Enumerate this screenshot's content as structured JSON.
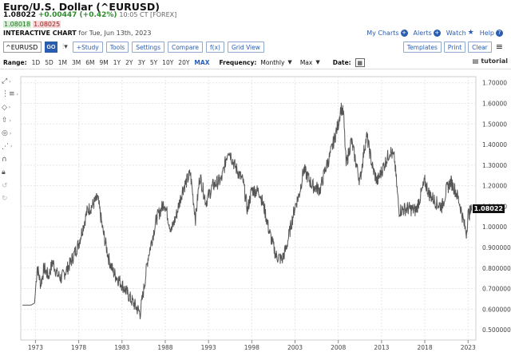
{
  "header": {
    "title": "Euro/U.S. Dollar (^EURUSD)",
    "last": "1.08022",
    "change": "+0.00447 (+0.42%)",
    "timestamp": "10:05 CT [FOREX]",
    "bid": "1.08018",
    "ask": "1.08025",
    "chart_label": "INTERACTIVE CHART",
    "chart_date": "for Tue, Jun 13th, 2023"
  },
  "links": {
    "my_charts": "My Charts",
    "alerts": "Alerts",
    "watch": "Watch",
    "help": "Help"
  },
  "toolbar": {
    "symbol_value": "^EURUSD",
    "go_label": "GO",
    "study_label": "+Study",
    "tools_label": "Tools",
    "settings_label": "Settings",
    "compare_label": "Compare",
    "fx_label": "f(x)",
    "gridview_label": "Grid View",
    "templates_label": "Templates",
    "print_label": "Print",
    "clear_label": "Clear"
  },
  "range": {
    "label": "Range:",
    "options": [
      "1D",
      "5D",
      "1M",
      "3M",
      "6M",
      "9M",
      "1Y",
      "2Y",
      "3Y",
      "5Y",
      "10Y",
      "20Y",
      "MAX"
    ],
    "active": "MAX",
    "frequency_label": "Frequency:",
    "frequency_value": "Monthly",
    "period_value": "Max",
    "date_label": "Date:"
  },
  "tutorial_label": "tutorial",
  "icons": [
    "crosshair-icon",
    "draw-line-icon",
    "shapes-icon",
    "arrow-up-icon",
    "target-icon",
    "pattern-icon",
    "magnet-icon",
    "lock-icon",
    "undo-icon",
    "redo-icon",
    "calendar-icon",
    "menu-icon",
    "tutorial-icon"
  ],
  "colors": {
    "accent": "#2a5db0",
    "price_line": "#555555",
    "up": "#2e8b2e",
    "last_box": "#111111"
  },
  "chart_data": {
    "type": "line",
    "title": "",
    "xlabel": "",
    "ylabel": "",
    "x_ticks": [
      "1973",
      "1978",
      "1983",
      "1988",
      "1993",
      "1998",
      "2003",
      "2008",
      "2013",
      "2018",
      "2023"
    ],
    "y_ticks": [
      "0.500000",
      "0.600000",
      "0.700000",
      "0.800000",
      "0.900000",
      "1.00000",
      "1.10000",
      "1.20000",
      "1.30000",
      "1.40000",
      "1.50000",
      "1.60000",
      "1.70000"
    ],
    "xlim": [
      1971.3,
      2023.9
    ],
    "ylim": [
      0.45,
      1.73
    ],
    "last_value": "1.08022",
    "series": [
      {
        "x": [
          1971.5,
          1972.5,
          1972.9,
          1973.2,
          1973.6,
          1974.0,
          1974.5,
          1975.0,
          1975.5,
          1976.0,
          1977.0,
          1978.0,
          1979.0,
          1979.5,
          1980.2,
          1980.8,
          1981.5,
          1982.0,
          1983.0,
          1984.0,
          1985.1,
          1985.6,
          1986.0,
          1987.0,
          1987.9,
          1988.7,
          1989.3,
          1990.0,
          1990.9,
          1991.5,
          1992.0,
          1992.7,
          1993.5,
          1994.5,
          1995.3,
          1996.0,
          1997.0,
          1997.5,
          1998.0,
          1998.9,
          1999.5,
          2000.0,
          2000.8,
          2001.5,
          2002.0,
          2002.5,
          2003.0,
          2003.5,
          2004.0,
          2005.0,
          2005.9,
          2006.5,
          2007.0,
          2007.5,
          2008.0,
          2008.3,
          2008.6,
          2008.9,
          2009.5,
          2010.0,
          2010.5,
          2011.0,
          2011.3,
          2012.0,
          2012.5,
          2013.5,
          2014.0,
          2014.5,
          2015.0,
          2016.0,
          2017.0,
          2018.0,
          2018.5,
          2019.5,
          2020.0,
          2020.5,
          2021.0,
          2021.5,
          2022.0,
          2022.5,
          2022.8,
          2023.0,
          2023.4
        ],
        "values": [
          0.62,
          0.62,
          0.63,
          0.81,
          0.72,
          0.8,
          0.76,
          0.83,
          0.77,
          0.75,
          0.82,
          0.92,
          1.08,
          1.1,
          1.14,
          0.98,
          0.84,
          0.78,
          0.72,
          0.65,
          0.58,
          0.72,
          0.85,
          1.04,
          1.12,
          0.98,
          1.06,
          1.18,
          1.26,
          1.04,
          1.25,
          1.12,
          1.2,
          1.23,
          1.38,
          1.3,
          1.22,
          1.08,
          1.18,
          1.17,
          1.08,
          0.98,
          0.86,
          0.84,
          0.9,
          1.0,
          1.1,
          1.16,
          1.28,
          1.2,
          1.18,
          1.28,
          1.34,
          1.42,
          1.5,
          1.58,
          1.55,
          1.3,
          1.42,
          1.32,
          1.22,
          1.38,
          1.44,
          1.28,
          1.22,
          1.32,
          1.37,
          1.33,
          1.08,
          1.09,
          1.08,
          1.22,
          1.16,
          1.11,
          1.1,
          1.18,
          1.22,
          1.18,
          1.12,
          1.02,
          0.97,
          1.06,
          1.08
        ]
      }
    ]
  }
}
